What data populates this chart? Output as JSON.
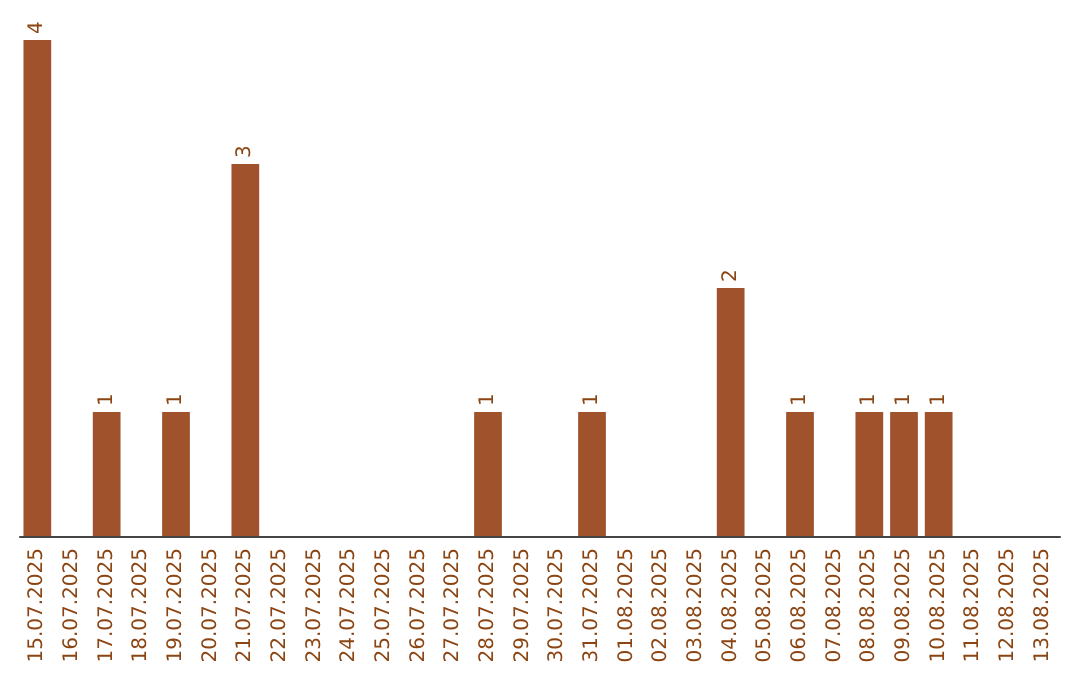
{
  "chart_data": {
    "type": "bar",
    "categories": [
      "15.07.2025",
      "16.07.2025",
      "17.07.2025",
      "18.07.2025",
      "19.07.2025",
      "20.07.2025",
      "21.07.2025",
      "22.07.2025",
      "23.07.2025",
      "24.07.2025",
      "25.07.2025",
      "26.07.2025",
      "27.07.2025",
      "28.07.2025",
      "29.07.2025",
      "30.07.2025",
      "31.07.2025",
      "01.08.2025",
      "02.08.2025",
      "03.08.2025",
      "04.08.2025",
      "05.08.2025",
      "06.08.2025",
      "07.08.2025",
      "08.08.2025",
      "09.08.2025",
      "10.08.2025",
      "11.08.2025",
      "12.08.2025",
      "13.08.2025"
    ],
    "values": [
      4,
      0,
      1,
      0,
      1,
      0,
      3,
      0,
      0,
      0,
      0,
      0,
      0,
      1,
      0,
      0,
      1,
      0,
      0,
      0,
      2,
      0,
      1,
      0,
      1,
      1,
      1,
      0,
      0,
      0
    ],
    "value_labels": [
      "4",
      null,
      "1",
      null,
      "1",
      null,
      "3",
      null,
      null,
      null,
      null,
      null,
      null,
      "1",
      null,
      null,
      "1",
      null,
      null,
      null,
      "2",
      null,
      "1",
      null,
      "1",
      "1",
      "1",
      null,
      null,
      null
    ],
    "color": "#a0522d"
  }
}
